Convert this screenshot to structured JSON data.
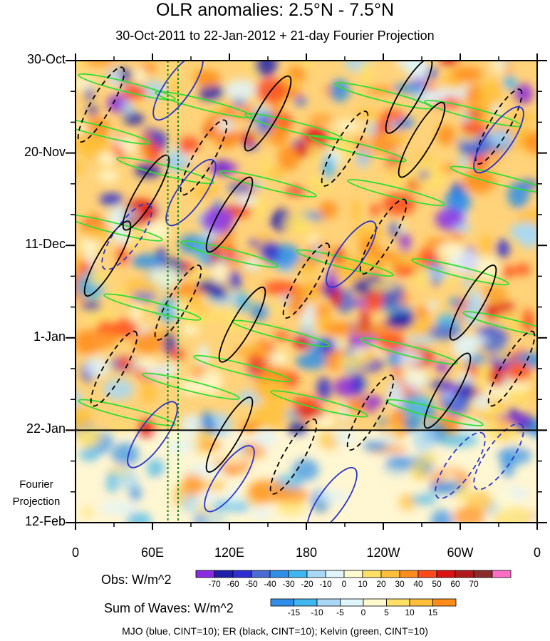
{
  "chart_data": {
    "type": "heatmap",
    "title": "OLR anomalies: 2.5°N - 7.5°N",
    "subtitle": "30-Oct-2011 to 22-Jan-2012 + 21-day Fourier Projection",
    "xlabel": "",
    "ylabel": "",
    "x_tick_labels": [
      "0",
      "60E",
      "120E",
      "180",
      "120W",
      "60W",
      "0"
    ],
    "x_tick_values_deg": [
      0,
      60,
      120,
      180,
      240,
      300,
      360
    ],
    "xlim": [
      0,
      360
    ],
    "y_tick_labels": [
      "30-Oct",
      "20-Nov",
      "11-Dec",
      "1-Jan",
      "22-Jan",
      "12-Feb"
    ],
    "y_tick_days": [
      0,
      21,
      42,
      63,
      84,
      105
    ],
    "ylim_days": [
      0,
      105
    ],
    "projection_start_day": 84,
    "projection_label_line1": "Fourier",
    "projection_label_line2": "Projection",
    "obs_colorbar": {
      "label": "Obs: W/m^2",
      "levels": [
        "-70",
        "-60",
        "-50",
        "-40",
        "-30",
        "-20",
        "-10",
        "0",
        "10",
        "20",
        "30",
        "40",
        "50",
        "60",
        "70"
      ],
      "colors": [
        "#8a2be2",
        "#1e1eaa",
        "#2e2ed2",
        "#4a6bd6",
        "#2f8fe8",
        "#40b6f0",
        "#a8d8f5",
        "#dff4fb",
        "#fff9cf",
        "#ffe066",
        "#ffbf3a",
        "#ff8c1a",
        "#ff4a1a",
        "#dd1111",
        "#b01a1a",
        "#8b2a2a",
        "#ff6ec7"
      ]
    },
    "waves_colorbar": {
      "label": "Sum of Waves: W/m^2",
      "levels": [
        "-15",
        "-10",
        "-5",
        "0",
        "5",
        "10",
        "15"
      ],
      "colors": [
        "#2f8fe8",
        "#40b6f0",
        "#a8d8f5",
        "#dff4fb",
        "#fff9cf",
        "#ffe066",
        "#ffbf3a",
        "#ff8c1a"
      ]
    },
    "legend": "MJO (blue, CINT=10); ER (black, CINT=10); Kelvin (green, CINT=10)",
    "series": [
      {
        "name": "MJO",
        "color": "#2a36c8",
        "contour_interval": 10
      },
      {
        "name": "ER",
        "color": "#000000",
        "contour_interval": 10
      },
      {
        "name": "Kelvin",
        "color": "#33dd33",
        "contour_interval": 10
      }
    ],
    "reference_lines_deg": [
      72,
      80
    ]
  }
}
